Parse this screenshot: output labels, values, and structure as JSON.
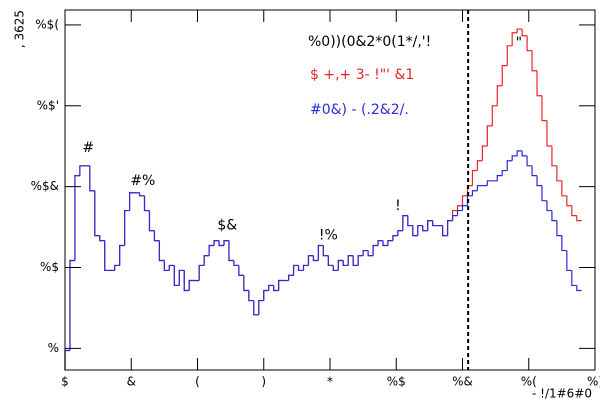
{
  "chart_data": {
    "type": "histogram",
    "legend_title": "%0))(0&2*0(1*/,'!",
    "xlabel": "- !/1#6#0",
    "ylabel": ", 3625",
    "bins": [
      0,
      0.15,
      0.3,
      0.45,
      0.6,
      0.75,
      0.9,
      1.05,
      1.2,
      1.35,
      1.5,
      1.65,
      1.8,
      1.95,
      2.1,
      2.25,
      2.4,
      2.55,
      2.7,
      2.85,
      3,
      3.15,
      3.3,
      3.45,
      3.6,
      3.75,
      3.9,
      4.05,
      4.2,
      4.35,
      4.5,
      4.65,
      4.8,
      4.95,
      5.1,
      5.25,
      5.4,
      5.55,
      5.7,
      5.85,
      6,
      6.15,
      6.3,
      6.45,
      6.6,
      6.75,
      6.9,
      7.05,
      7.2,
      7.35,
      7.5,
      7.65,
      7.8,
      7.95,
      8.1,
      8.25,
      8.4,
      8.55,
      8.7,
      8.85,
      9,
      9.15,
      9.3,
      9.45,
      9.6,
      9.75,
      9.9,
      10.05,
      10.2,
      10.35,
      10.5,
      10.65,
      10.8,
      10.95,
      11.1,
      11.25,
      11.4,
      11.55,
      11.7,
      11.85,
      12,
      12.15,
      12.3,
      12.45,
      12.6,
      12.75,
      12.9,
      13.05,
      13.2,
      13.35,
      13.5,
      13.65,
      13.8,
      13.95,
      14.1,
      14.25,
      14.4,
      14.55,
      14.7,
      14.85,
      15,
      15.15,
      15.3,
      15.45,
      15.6
    ],
    "series": [
      {
        "name": "$ +,+ 3- !\"' &1",
        "color": "#e8262a",
        "values": [
          0.94,
          12.2,
          137,
          181,
          181,
          89,
          24.8,
          21.5,
          9.2,
          9.2,
          10.6,
          18.7,
          50.6,
          84,
          84,
          77,
          50.6,
          28.6,
          21.5,
          12.2,
          9.2,
          10.6,
          6,
          9.2,
          5.2,
          6.9,
          6.9,
          10.6,
          14,
          18.7,
          21.5,
          18.7,
          21.5,
          12.2,
          10.6,
          8,
          5.2,
          3.9,
          2.6,
          3.9,
          5.2,
          6,
          5.2,
          6.9,
          6.9,
          8,
          10.6,
          9.2,
          10.6,
          14,
          12.2,
          18.7,
          14,
          10.6,
          9.2,
          12.2,
          10.6,
          14,
          10.6,
          14,
          16.2,
          14,
          18.7,
          21.5,
          18.7,
          21.5,
          24.8,
          28.6,
          43.8,
          33,
          24.8,
          33,
          28.6,
          38,
          33,
          33,
          24.8,
          38,
          50.6,
          58,
          77,
          103,
          158,
          209,
          318,
          565,
          1000,
          1770,
          3140,
          5520,
          8000,
          8890,
          7350,
          4800,
          2710,
          1330,
          655,
          318,
          181,
          118,
          77,
          58,
          43.8,
          38
        ]
      },
      {
        "name": "#0&) - (.2&2/.",
        "color": "#2b2bd8",
        "values": [
          0.94,
          12.2,
          137,
          181,
          181,
          89,
          24.8,
          21.5,
          9.2,
          9.2,
          10.6,
          18.7,
          50.6,
          84,
          84,
          77,
          50.6,
          28.6,
          21.5,
          12.2,
          9.2,
          10.6,
          6,
          9.2,
          5.2,
          6.9,
          6.9,
          10.6,
          14,
          18.7,
          21.5,
          18.7,
          21.5,
          12.2,
          10.6,
          8,
          5.2,
          3.9,
          2.6,
          3.9,
          5.2,
          6,
          5.2,
          6.9,
          6.9,
          8,
          10.6,
          9.2,
          10.6,
          14,
          12.2,
          18.7,
          14,
          10.6,
          9.2,
          12.2,
          10.6,
          14,
          10.6,
          14,
          16.2,
          14,
          18.7,
          21.5,
          18.7,
          21.5,
          24.8,
          28.6,
          43.8,
          33,
          24.8,
          33,
          28.6,
          38,
          33,
          33,
          24.8,
          38,
          43.8,
          50.6,
          58,
          77,
          89,
          103,
          103,
          118,
          118,
          137,
          158,
          209,
          240,
          277,
          240,
          181,
          137,
          103,
          67,
          50.6,
          38,
          24.8,
          16.2,
          9.2,
          6,
          5.2
        ]
      }
    ],
    "xlim": [
      0,
      16
    ],
    "ylim": [
      0.54,
      15300
    ],
    "logy": true,
    "xticks": [
      {
        "value": 0,
        "label": "$"
      },
      {
        "value": 2,
        "label": "&"
      },
      {
        "value": 4,
        "label": "("
      },
      {
        "value": 6,
        "label": ")"
      },
      {
        "value": 8,
        "label": "*"
      },
      {
        "value": 10,
        "label": "%$"
      },
      {
        "value": 12,
        "label": "%&"
      },
      {
        "value": 14,
        "label": "%("
      },
      {
        "value": 16,
        "label": "%)"
      }
    ],
    "yticks": [
      {
        "value": 1,
        "label": "%"
      },
      {
        "value": 10,
        "label": "%$"
      },
      {
        "value": 100,
        "label": "%$&"
      },
      {
        "value": 1000,
        "label": "%$'"
      },
      {
        "value": 10000,
        "label": "%$("
      }
    ],
    "vline": 12.17,
    "annotations": [
      {
        "text": "#",
        "x": 0.7,
        "y": 300
      },
      {
        "text": "#%",
        "x": 2.35,
        "y": 118
      },
      {
        "text": "$&",
        "x": 4.9,
        "y": 33
      },
      {
        "text": "!%",
        "x": 7.95,
        "y": 24.8
      },
      {
        "text": "!",
        "x": 10.05,
        "y": 58
      },
      {
        "text": "\"",
        "x": 13.7,
        "y": 6000
      }
    ]
  }
}
